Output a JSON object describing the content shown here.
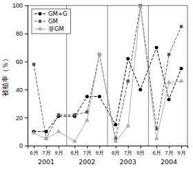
{
  "chart_data": {
    "type": "line",
    "ylabel": "被植率（％）",
    "categories": [
      "6月",
      "7月",
      "9月",
      "6月",
      "7月",
      "9月",
      "6月",
      "7月",
      "9月",
      "6月",
      "7月",
      "9月"
    ],
    "annotations": [
      "2001",
      "2002",
      "2003",
      "2004"
    ],
    "series": [
      {
        "name": "GM+G",
        "color": "#000000",
        "marker": "circle",
        "line_style": "dashed",
        "values": [
          10,
          10,
          21,
          21,
          35,
          35,
          15,
          62,
          40,
          70,
          33,
          55
        ]
      },
      {
        "name": "GM",
        "color": "#555555",
        "marker": "square",
        "line_style": "dashed",
        "values": [
          58,
          5,
          22,
          22,
          24,
          65,
          5,
          46,
          100,
          12,
          65,
          85
        ]
      },
      {
        "name": "非GM",
        "color": "#aaaaaa",
        "marker": "triangle",
        "line_style": "solid",
        "values": [
          9,
          5,
          10,
          3,
          18,
          65,
          3,
          14,
          99,
          5,
          45,
          46
        ]
      }
    ],
    "ylim": [
      0,
      100
    ],
    "yticks": [
      0,
      20,
      40,
      60,
      80,
      100
    ],
    "legend": "upper left"
  }
}
